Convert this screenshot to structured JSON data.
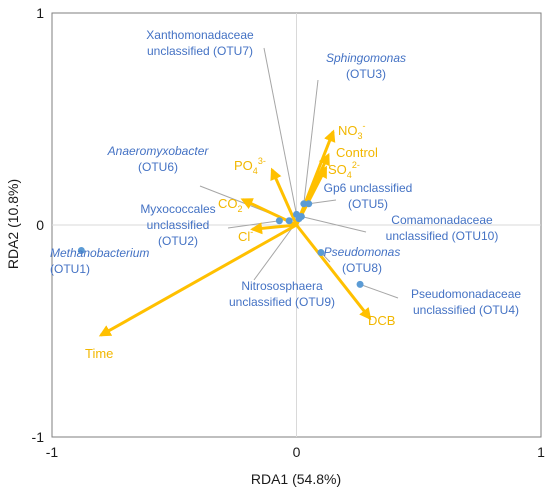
{
  "chart_data": {
    "type": "scatter",
    "title": "",
    "xlabel": "RDA1 (54.8%)",
    "ylabel": "RDA2 (10.8%)",
    "xlim": [
      -1,
      1
    ],
    "ylim": [
      -1,
      1
    ],
    "x_ticks": [
      {
        "value": -1,
        "label": "-1"
      },
      {
        "value": 0,
        "label": "0"
      },
      {
        "value": 1,
        "label": "1"
      }
    ],
    "y_ticks": [
      {
        "value": 1,
        "label": "1"
      },
      {
        "value": 0,
        "label": "0"
      },
      {
        "value": -1,
        "label": "-1"
      }
    ],
    "grid": false,
    "colors": {
      "species_points": "#5b9bd5",
      "species_text": "#4472c4",
      "environment_arrows": "#ffc000",
      "environment_text": "#f2b700",
      "leader_lines": "#a6a6a6",
      "zero_lines": "#d9d9d9",
      "frame": "#7f7f7f"
    },
    "species": [
      {
        "id": "OTU1",
        "x": -0.88,
        "y": -0.12,
        "label_lines": [
          "Methanobacterium",
          "(OTU1)"
        ],
        "italic_first_line": true
      },
      {
        "id": "OTU2",
        "x": -0.07,
        "y": 0.02,
        "label_lines": [
          "Myxococcales",
          "unclassified",
          "(OTU2)"
        ],
        "italic_first_line": false
      },
      {
        "id": "OTU3",
        "x": 0.03,
        "y": 0.1,
        "label_lines": [
          "Sphingomonas",
          "(OTU3)"
        ],
        "italic_first_line": true
      },
      {
        "id": "OTU4",
        "x": 0.26,
        "y": -0.28,
        "label_lines": [
          "Pseudomonadaceae",
          "unclassified (OTU4)"
        ],
        "italic_first_line": false
      },
      {
        "id": "OTU5",
        "x": 0.05,
        "y": 0.1,
        "label_lines": [
          "Gp6 unclassified",
          "(OTU5)"
        ],
        "italic_first_line": false
      },
      {
        "id": "OTU6",
        "x": -0.03,
        "y": 0.02,
        "label_lines": [
          "Anaeromyxobacter",
          "(OTU6)"
        ],
        "italic_first_line": true
      },
      {
        "id": "OTU7",
        "x": 0.0,
        "y": 0.05,
        "label_lines": [
          "Xanthomonadaceae",
          "unclassified (OTU7)"
        ],
        "italic_first_line": false
      },
      {
        "id": "OTU8",
        "x": 0.1,
        "y": -0.13,
        "label_lines": [
          "Pseudomonas",
          "(OTU8)"
        ],
        "italic_first_line": true
      },
      {
        "id": "OTU9",
        "x": 0.01,
        "y": 0.03,
        "label_lines": [
          "Nitrososphaera",
          "unclassified (OTU9)"
        ],
        "italic_first_line": false
      },
      {
        "id": "OTU10",
        "x": 0.02,
        "y": 0.04,
        "label_lines": [
          "Comamonadaceae",
          "unclassified (OTU10)"
        ],
        "italic_first_line": false
      }
    ],
    "environment": [
      {
        "name": "NO3",
        "x": 0.15,
        "y": 0.44,
        "label": "NO",
        "sub": "3",
        "sup": "-"
      },
      {
        "name": "Control",
        "x": 0.13,
        "y": 0.33,
        "label": "Control",
        "sub": "",
        "sup": ""
      },
      {
        "name": "SO4",
        "x": 0.12,
        "y": 0.27,
        "label": "SO",
        "sub": "4",
        "sup": "2-"
      },
      {
        "name": "PO4",
        "x": -0.1,
        "y": 0.26,
        "label": "PO",
        "sub": "4",
        "sup": "3-"
      },
      {
        "name": "CO2",
        "x": -0.22,
        "y": 0.12,
        "label": "CO",
        "sub": "2",
        "sup": ""
      },
      {
        "name": "Cl",
        "x": -0.18,
        "y": -0.02,
        "label": "Cl",
        "sub": "",
        "sup": "-"
      },
      {
        "name": "Time",
        "x": -0.8,
        "y": -0.52,
        "label": "Time",
        "sub": "",
        "sup": ""
      },
      {
        "name": "DCB",
        "x": 0.3,
        "y": -0.44,
        "label": "DCB",
        "sub": "",
        "sup": ""
      }
    ]
  }
}
